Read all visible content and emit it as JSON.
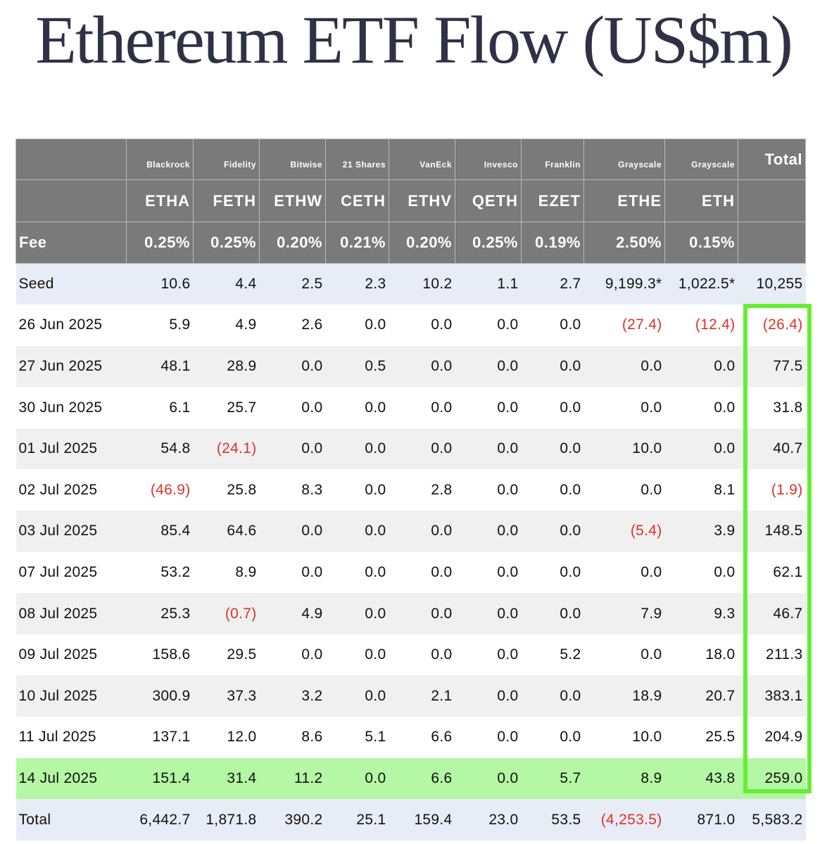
{
  "title": "Ethereum ETF Flow (US$m)",
  "columns": [
    {
      "issuer": "Blackrock",
      "ticker": "ETHA",
      "fee": "0.25%"
    },
    {
      "issuer": "Fidelity",
      "ticker": "FETH",
      "fee": "0.25%"
    },
    {
      "issuer": "Bitwise",
      "ticker": "ETHW",
      "fee": "0.20%"
    },
    {
      "issuer": "21 Shares",
      "ticker": "CETH",
      "fee": "0.21%"
    },
    {
      "issuer": "VanEck",
      "ticker": "ETHV",
      "fee": "0.20%"
    },
    {
      "issuer": "Invesco",
      "ticker": "QETH",
      "fee": "0.25%"
    },
    {
      "issuer": "Franklin",
      "ticker": "EZET",
      "fee": "0.19%"
    },
    {
      "issuer": "Grayscale",
      "ticker": "ETHE",
      "fee": "2.50%"
    },
    {
      "issuer": "Grayscale",
      "ticker": "ETH",
      "fee": "0.15%"
    }
  ],
  "total_header": "Total",
  "fee_label": "Fee",
  "rows": [
    {
      "label": "Seed",
      "kind": "seed",
      "values": [
        "10.6",
        "4.4",
        "2.5",
        "2.3",
        "10.2",
        "1.1",
        "2.7",
        "9,199.3*",
        "1,022.5*"
      ],
      "total": "10,255"
    },
    {
      "label": "26 Jun 2025",
      "kind": "even",
      "values": [
        "5.9",
        "4.9",
        "2.6",
        "0.0",
        "0.0",
        "0.0",
        "0.0",
        "(27.4)",
        "(12.4)"
      ],
      "total": "(26.4)"
    },
    {
      "label": "27 Jun 2025",
      "kind": "odd",
      "values": [
        "48.1",
        "28.9",
        "0.0",
        "0.5",
        "0.0",
        "0.0",
        "0.0",
        "0.0",
        "0.0"
      ],
      "total": "77.5"
    },
    {
      "label": "30 Jun 2025",
      "kind": "even",
      "values": [
        "6.1",
        "25.7",
        "0.0",
        "0.0",
        "0.0",
        "0.0",
        "0.0",
        "0.0",
        "0.0"
      ],
      "total": "31.8"
    },
    {
      "label": "01 Jul 2025",
      "kind": "odd",
      "values": [
        "54.8",
        "(24.1)",
        "0.0",
        "0.0",
        "0.0",
        "0.0",
        "0.0",
        "10.0",
        "0.0"
      ],
      "total": "40.7"
    },
    {
      "label": "02 Jul 2025",
      "kind": "even",
      "values": [
        "(46.9)",
        "25.8",
        "8.3",
        "0.0",
        "2.8",
        "0.0",
        "0.0",
        "0.0",
        "8.1"
      ],
      "total": "(1.9)"
    },
    {
      "label": "03 Jul 2025",
      "kind": "odd",
      "values": [
        "85.4",
        "64.6",
        "0.0",
        "0.0",
        "0.0",
        "0.0",
        "0.0",
        "(5.4)",
        "3.9"
      ],
      "total": "148.5"
    },
    {
      "label": "07 Jul 2025",
      "kind": "even",
      "values": [
        "53.2",
        "8.9",
        "0.0",
        "0.0",
        "0.0",
        "0.0",
        "0.0",
        "0.0",
        "0.0"
      ],
      "total": "62.1"
    },
    {
      "label": "08 Jul 2025",
      "kind": "odd",
      "values": [
        "25.3",
        "(0.7)",
        "4.9",
        "0.0",
        "0.0",
        "0.0",
        "0.0",
        "7.9",
        "9.3"
      ],
      "total": "46.7"
    },
    {
      "label": "09 Jul 2025",
      "kind": "even",
      "values": [
        "158.6",
        "29.5",
        "0.0",
        "0.0",
        "0.0",
        "0.0",
        "5.2",
        "0.0",
        "18.0"
      ],
      "total": "211.3"
    },
    {
      "label": "10 Jul 2025",
      "kind": "odd",
      "values": [
        "300.9",
        "37.3",
        "3.2",
        "0.0",
        "2.1",
        "0.0",
        "0.0",
        "18.9",
        "20.7"
      ],
      "total": "383.1"
    },
    {
      "label": "11 Jul 2025",
      "kind": "even",
      "values": [
        "137.1",
        "12.0",
        "8.6",
        "5.1",
        "6.6",
        "0.0",
        "0.0",
        "10.0",
        "25.5"
      ],
      "total": "204.9"
    },
    {
      "label": "14 Jul 2025",
      "kind": "latest",
      "values": [
        "151.4",
        "31.4",
        "11.2",
        "0.0",
        "6.6",
        "0.0",
        "5.7",
        "8.9",
        "43.8"
      ],
      "total": "259.0"
    },
    {
      "label": "Total",
      "kind": "total-row",
      "values": [
        "6,442.7",
        "1,871.8",
        "390.2",
        "25.1",
        "159.4",
        "23.0",
        "53.5",
        "(4,253.5)",
        "871.0"
      ],
      "total": "5,583.2"
    }
  ],
  "colors": {
    "header_bg": "#7a7a7a",
    "negative": "#e0302a",
    "latest_row": "#b4f7a4",
    "highlight_box": "#66ee33",
    "seed_total_bg": "#e8ecf6"
  }
}
